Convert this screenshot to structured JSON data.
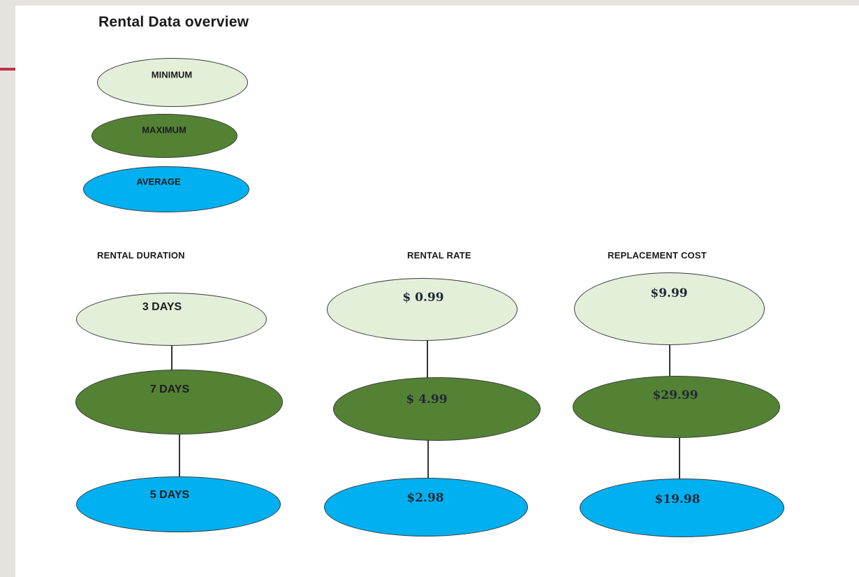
{
  "title": "Rental Data overview",
  "legend": {
    "minimum": "MINIMUM",
    "maximum": "MAXIMUM",
    "average": "AVERAGE"
  },
  "columns": {
    "duration": {
      "header": "RENTAL DURATION",
      "min": "3 DAYS",
      "max": "7 DAYS",
      "avg": "5 DAYS"
    },
    "rate": {
      "header": "RENTAL RATE",
      "min": "$ 0.99",
      "max": "$ 4.99",
      "avg": "$2.98"
    },
    "cost": {
      "header": "REPLACEMENT COST",
      "min": "$9.99",
      "max": "$29.99",
      "avg": "$19.98"
    }
  },
  "colors": {
    "minimum": "#e4efda",
    "maximum": "#548235",
    "average": "#00b0f0",
    "accent": "#c0304a"
  }
}
